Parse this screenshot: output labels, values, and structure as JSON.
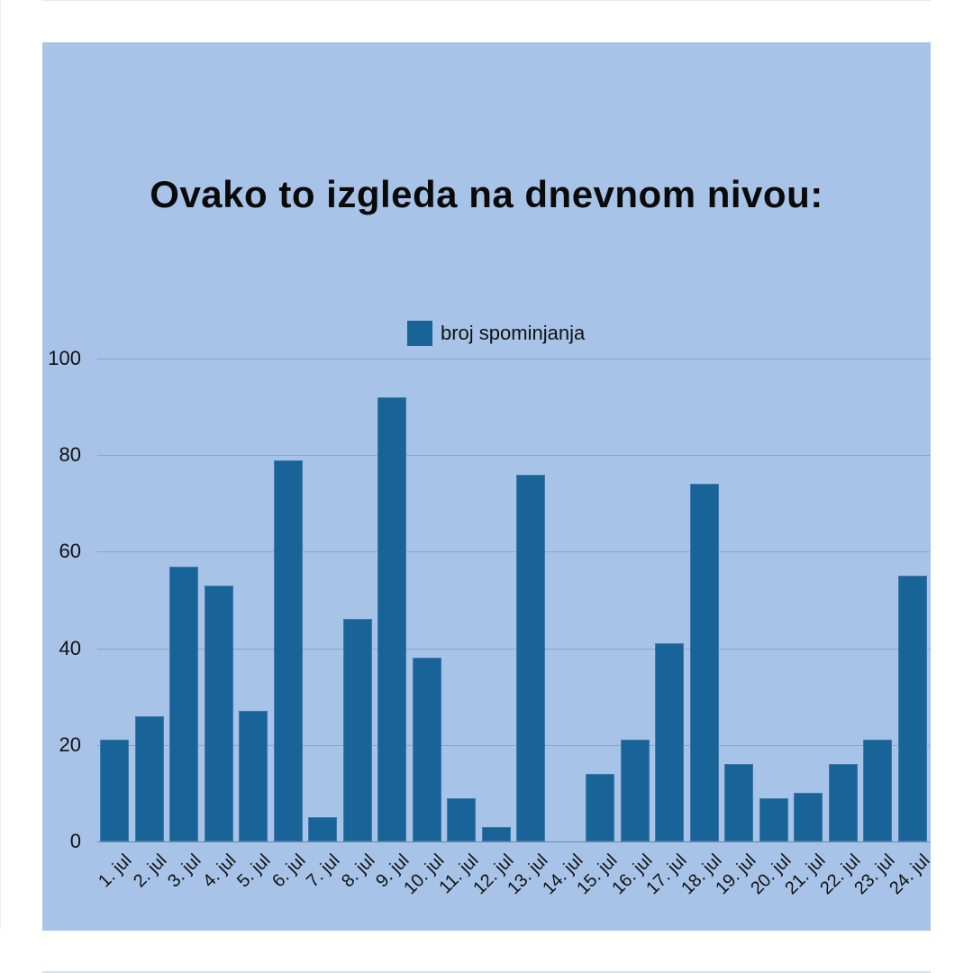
{
  "title": "Ovako to izgleda na dnevnom nivou:",
  "legend": {
    "label": "broj spominjanja",
    "color": "#186498"
  },
  "colors": {
    "background": "#a7c3e7",
    "bar": "#186498",
    "page": "#ffffff"
  },
  "chart_data": {
    "type": "bar",
    "title": "Ovako to izgleda na dnevnom nivou:",
    "xlabel": "",
    "ylabel": "",
    "ylim": [
      0,
      100
    ],
    "yticks": [
      0,
      20,
      40,
      60,
      80,
      100
    ],
    "grid": true,
    "legend_position": "top",
    "categories": [
      "1. jul",
      "2. jul",
      "3. jul",
      "4. jul",
      "5. jul",
      "6. jul",
      "7. jul",
      "8. jul",
      "9. jul",
      "10. jul",
      "11. jul",
      "12. jul",
      "13. jul",
      "14. jul",
      "15. jul",
      "16. jul",
      "17. jul",
      "18. jul",
      "19. jul",
      "20. jul",
      "21. jul",
      "22. jul",
      "23. jul",
      "24. jul"
    ],
    "series": [
      {
        "name": "broj spominjanja",
        "values": [
          21,
          26,
          57,
          53,
          27,
          79,
          5,
          46,
          92,
          38,
          9,
          3,
          76,
          0,
          14,
          21,
          41,
          74,
          16,
          9,
          10,
          16,
          21,
          55
        ]
      }
    ]
  }
}
